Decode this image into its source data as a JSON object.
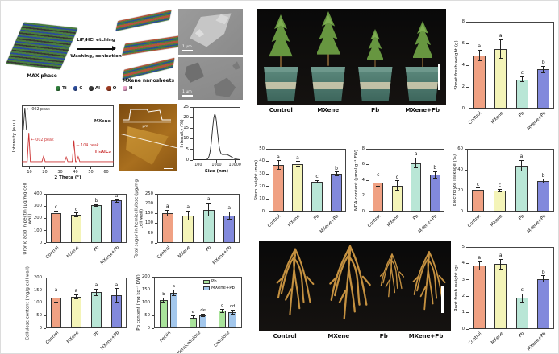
{
  "figure": {
    "schematic": {
      "arrow_label_top": "LiF/HCl etching",
      "arrow_label_bottom": "Washing, sonication",
      "left_label": "MAX phase",
      "right_label": "MXene nanosheets",
      "legend": [
        {
          "symbol": "Ti",
          "color": "#2f7d3a"
        },
        {
          "symbol": "C",
          "color": "#2b4b9b"
        },
        {
          "symbol": "Al",
          "color": "#3b3b3b"
        },
        {
          "symbol": "O",
          "color": "#9c3b22"
        },
        {
          "symbol": "H",
          "color": "#e8a0c8"
        }
      ]
    },
    "sem": {
      "scalebar_top": "1 μm",
      "scalebar_bottom": "1 μm"
    },
    "afm": {
      "inset_xlabel": "μm"
    },
    "plants": {
      "labels": [
        "Control",
        "MXene",
        "Pb",
        "MXene+Pb"
      ]
    },
    "roots": {
      "labels": [
        "Control",
        "MXene",
        "Pb",
        "MXene+Pb"
      ]
    }
  },
  "style": {
    "bar_colors": [
      "#f0a183",
      "#f4f4b8",
      "#b9e6d6",
      "#8289dc"
    ],
    "error_color": "#222222",
    "frame_color": "#444444"
  },
  "chart_data": [
    {
      "id": "xrd",
      "type": "line",
      "xlabel": "2 Theta (°)",
      "ylabel": "Intensity (a.u.)",
      "xlim": [
        5,
        65
      ],
      "xticks": [
        10,
        20,
        30,
        40,
        50,
        60
      ],
      "series": [
        {
          "name": "MXene",
          "color": "#2a2a2a",
          "peaks": [
            {
              "x": 7,
              "h": 1.0,
              "label": "002 peak"
            }
          ]
        },
        {
          "name": "Ti3AlC2",
          "display_name": "Ti₃AlC₂",
          "color": "#cc3333",
          "peaks": [
            {
              "x": 9.6,
              "h": 0.75,
              "label": "002 peak"
            },
            {
              "x": 19.2,
              "h": 0.14
            },
            {
              "x": 34,
              "h": 0.12
            },
            {
              "x": 39,
              "h": 0.55,
              "label": "104 peak"
            },
            {
              "x": 41.8,
              "h": 0.13
            }
          ]
        }
      ]
    },
    {
      "id": "size_distribution",
      "type": "line",
      "xlabel": "Size (nm)",
      "ylabel": "Intensity (%)",
      "xscale": "log",
      "xticks": [
        100,
        1000,
        10000
      ],
      "ylim": [
        0,
        25
      ],
      "yticks": [
        0,
        5,
        10,
        15,
        20,
        25
      ],
      "curve": {
        "peak_center_nm": 800,
        "peak_height": 21,
        "sigma_log": 0.14,
        "shoulder_center_nm": 3000,
        "shoulder_height": 2.5
      }
    },
    {
      "id": "uronic_acid",
      "type": "bar",
      "ylabel": "Uronic acid in pectin (μg/mg cell wall)",
      "ylim": [
        0,
        400
      ],
      "yticks": [
        0,
        100,
        200,
        300,
        400
      ],
      "categories": [
        "Control",
        "MXene",
        "Pb",
        "MXene+Pb"
      ],
      "values": [
        240,
        230,
        305,
        345
      ],
      "errors": [
        22,
        15,
        8,
        12
      ],
      "letters": [
        "c",
        "c",
        "b",
        "a"
      ]
    },
    {
      "id": "hemicellulose_sugar",
      "type": "bar",
      "ylabel": "Total sugar in hemicellulose (μg/mg cell wall)",
      "ylim": [
        0,
        250
      ],
      "yticks": [
        0,
        50,
        100,
        150,
        200,
        250
      ],
      "categories": [
        "Control",
        "MXene",
        "Pb",
        "MXene+Pb"
      ],
      "values": [
        152,
        140,
        170,
        140
      ],
      "errors": [
        15,
        22,
        33,
        18
      ],
      "letters": [
        "a",
        "a",
        "a",
        "a"
      ]
    },
    {
      "id": "cellulose_content",
      "type": "bar",
      "ylabel": "Cellulose content (mg/g cell wall)",
      "ylim": [
        0,
        200
      ],
      "yticks": [
        0,
        50,
        100,
        150,
        200
      ],
      "categories": [
        "Control",
        "MXene",
        "Pb",
        "MXene+Pb"
      ],
      "values": [
        120,
        125,
        142,
        130
      ],
      "errors": [
        16,
        8,
        12,
        26
      ],
      "letters": [
        "a",
        "a",
        "a",
        "a"
      ]
    },
    {
      "id": "pb_content",
      "type": "grouped-bar",
      "ylabel": "Pb content (mg kg⁻¹ DW)",
      "ylim": [
        0,
        200
      ],
      "yticks": [
        0,
        50,
        100,
        150,
        200
      ],
      "categories": [
        "Pectin",
        "Hemicellulose",
        "Cellulose"
      ],
      "legend_position": "top-right",
      "series": [
        {
          "name": "Pb",
          "color": "#a9e39b",
          "values": [
            110,
            42,
            68
          ],
          "errors": [
            8,
            6,
            6
          ],
          "letters": [
            "b",
            "e",
            "c"
          ]
        },
        {
          "name": "MXene+Pb",
          "color": "#a3c7ec",
          "values": [
            138,
            50,
            62
          ],
          "errors": [
            11,
            6,
            7
          ],
          "letters": [
            "a",
            "de",
            "cd"
          ]
        }
      ]
    },
    {
      "id": "shoot_fresh_weight",
      "type": "bar",
      "ylabel": "Shoot fresh weight (g)",
      "ylim": [
        0,
        8
      ],
      "yticks": [
        0,
        2,
        4,
        6,
        8
      ],
      "categories": [
        "Control",
        "MXene",
        "Pb",
        "MXene+Pb"
      ],
      "values": [
        4.9,
        5.5,
        2.7,
        3.6
      ],
      "errors": [
        0.5,
        0.85,
        0.25,
        0.3
      ],
      "letters": [
        "a",
        "a",
        "c",
        "b"
      ]
    },
    {
      "id": "stem_height",
      "type": "bar",
      "ylabel": "Stem height (mm)",
      "ylim": [
        0,
        50
      ],
      "yticks": [
        0,
        10,
        20,
        30,
        40,
        50
      ],
      "categories": [
        "Control",
        "MXene",
        "Pb",
        "MXene+Pb"
      ],
      "values": [
        37,
        38,
        24,
        30
      ],
      "errors": [
        3.5,
        2,
        1,
        1.5
      ],
      "letters": [
        "a",
        "a",
        "c",
        "b"
      ]
    },
    {
      "id": "mda_content",
      "type": "bar",
      "ylabel": "MDA content (μmol g⁻¹ FW)",
      "ylim": [
        0,
        8
      ],
      "yticks": [
        0,
        2,
        4,
        6,
        8
      ],
      "categories": [
        "Control",
        "MXene",
        "Pb",
        "MXene+Pb"
      ],
      "values": [
        3.7,
        3.3,
        6.2,
        4.7
      ],
      "errors": [
        0.5,
        0.6,
        0.65,
        0.4
      ],
      "letters": [
        "c",
        "c",
        "a",
        "b"
      ]
    },
    {
      "id": "electrolyte_leakage",
      "type": "bar",
      "ylabel": "Electrolyte leakage (%)",
      "ylim": [
        0,
        60
      ],
      "yticks": [
        0,
        20,
        40,
        60
      ],
      "categories": [
        "Control",
        "MXene",
        "Pb",
        "MXene+Pb"
      ],
      "values": [
        21,
        20,
        44,
        29
      ],
      "errors": [
        1.5,
        1.5,
        5,
        2
      ],
      "letters": [
        "c",
        "c",
        "a",
        "b"
      ]
    },
    {
      "id": "root_fresh_weight",
      "type": "bar",
      "ylabel": "Root fresh weight (g)",
      "ylim": [
        0,
        5
      ],
      "yticks": [
        0,
        1,
        2,
        3,
        4,
        5
      ],
      "categories": [
        "Control",
        "MXene",
        "Pb",
        "MXene+Pb"
      ],
      "values": [
        3.85,
        3.95,
        1.9,
        3.05
      ],
      "errors": [
        0.25,
        0.3,
        0.25,
        0.2
      ],
      "letters": [
        "a",
        "a",
        "c",
        "b"
      ]
    }
  ]
}
